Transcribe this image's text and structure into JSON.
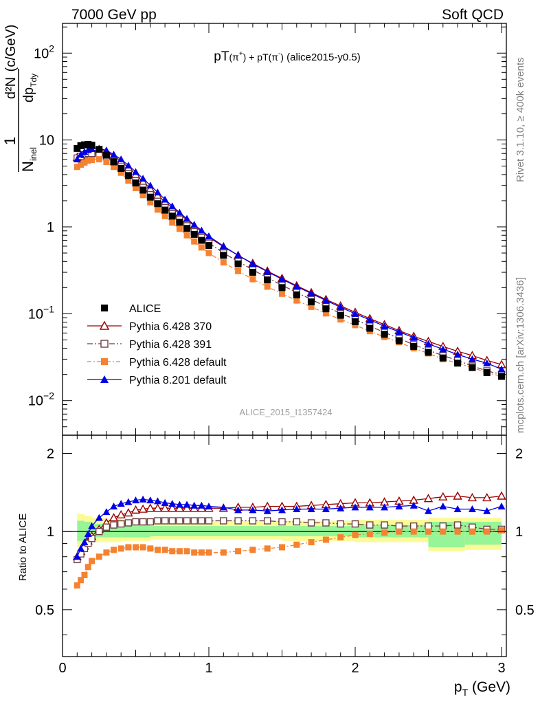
{
  "header": {
    "left": "7000 GeV pp",
    "right": "Soft QCD"
  },
  "side_labels": {
    "top": "Rivet 3.1.10, ≥ 400k events",
    "bottom": "mcplots.cern.ch [arXiv:1306.3436]"
  },
  "title": {
    "p1": "pT",
    "s1": "(π",
    "s1sup": "+",
    "s1b": ")",
    "plus": " + pT",
    "s2": "(π",
    "s2sup": "-",
    "s2b": ")",
    "tail": " (alice2015-y0.5)"
  },
  "watermark": "ALICE_2015_I1357424",
  "ylabel_main": {
    "one": "1",
    "n": "N",
    "nsub": "inel",
    "d2n": "d²N",
    "dp": "dp",
    "dpsub": "T",
    "dy": "dy",
    "units": "(c/GeV)"
  },
  "ylabel_ratio": "Ratio to ALICE",
  "xlabel": {
    "p": "p",
    "sub": "T",
    "units": " (GeV)"
  },
  "colors": {
    "alice": "#000000",
    "p370": "#990000",
    "p391": "#6b3f46",
    "pdef": "#f58231",
    "p8": "#0000e6",
    "band_inner": "#96f596",
    "band_outer": "#fafa96"
  },
  "chart_data": [
    {
      "type": "scatter",
      "panel": "main",
      "yscale": "log",
      "xlim": [
        0,
        3
      ],
      "ylim": [
        0.004,
        220
      ],
      "yticks": [
        0.01,
        0.1,
        1,
        10,
        100
      ],
      "yticklabels": [
        "10^-2",
        "10^-1",
        "1",
        "10",
        "10^2"
      ],
      "x": [
        0.1,
        0.125,
        0.15,
        0.175,
        0.2,
        0.25,
        0.3,
        0.35,
        0.4,
        0.45,
        0.5,
        0.55,
        0.6,
        0.65,
        0.7,
        0.75,
        0.8,
        0.85,
        0.9,
        0.95,
        1.0,
        1.1,
        1.2,
        1.3,
        1.4,
        1.5,
        1.6,
        1.7,
        1.8,
        1.9,
        2.0,
        2.1,
        2.2,
        2.3,
        2.4,
        2.5,
        2.6,
        2.7,
        2.8,
        2.9,
        3.0
      ],
      "series": [
        {
          "name": "ALICE",
          "marker": "filled-square",
          "values": [
            8.0,
            8.6,
            8.8,
            8.9,
            8.7,
            7.8,
            6.7,
            5.6,
            4.7,
            3.9,
            3.2,
            2.65,
            2.2,
            1.85,
            1.56,
            1.33,
            1.13,
            0.96,
            0.82,
            0.7,
            0.61,
            0.47,
            0.375,
            0.3,
            0.245,
            0.2,
            0.165,
            0.137,
            0.114,
            0.096,
            0.081,
            0.068,
            0.058,
            0.049,
            0.042,
            0.036,
            0.031,
            0.027,
            0.024,
            0.021,
            0.019
          ]
        },
        {
          "name": "Pythia 6.428 370",
          "marker": "open-triangle",
          "values": [
            6.3,
            6.6,
            7.0,
            7.3,
            7.5,
            7.7,
            7.4,
            6.6,
            5.7,
            4.8,
            4.0,
            3.3,
            2.75,
            2.3,
            1.95,
            1.66,
            1.41,
            1.2,
            1.03,
            0.88,
            0.76,
            0.59,
            0.47,
            0.38,
            0.31,
            0.255,
            0.21,
            0.175,
            0.146,
            0.123,
            0.104,
            0.088,
            0.075,
            0.064,
            0.055,
            0.048,
            0.042,
            0.037,
            0.033,
            0.029,
            0.026
          ]
        },
        {
          "name": "Pythia 6.428 391",
          "marker": "open-square",
          "values": [
            6.2,
            6.5,
            6.8,
            7.0,
            7.0,
            6.9,
            6.4,
            5.7,
            4.9,
            4.1,
            3.4,
            2.85,
            2.35,
            1.97,
            1.67,
            1.42,
            1.21,
            1.03,
            0.88,
            0.75,
            0.65,
            0.5,
            0.4,
            0.32,
            0.26,
            0.213,
            0.176,
            0.146,
            0.121,
            0.101,
            0.086,
            0.072,
            0.061,
            0.052,
            0.044,
            0.038,
            0.033,
            0.029,
            0.025,
            0.022,
            0.02
          ]
        },
        {
          "name": "Pythia 6.428 default",
          "marker": "filled-square",
          "values": [
            4.9,
            5.2,
            5.5,
            5.8,
            5.9,
            6.0,
            5.6,
            4.9,
            4.2,
            3.4,
            2.8,
            2.32,
            1.92,
            1.58,
            1.33,
            1.12,
            0.95,
            0.8,
            0.68,
            0.58,
            0.5,
            0.39,
            0.31,
            0.25,
            0.205,
            0.17,
            0.142,
            0.12,
            0.101,
            0.086,
            0.074,
            0.063,
            0.054,
            0.047,
            0.04,
            0.035,
            0.03,
            0.027,
            0.024,
            0.021,
            0.019
          ]
        },
        {
          "name": "Pythia 8.201 default",
          "marker": "filled-triangle",
          "values": [
            6.0,
            6.8,
            7.3,
            7.7,
            7.9,
            8.0,
            7.6,
            6.8,
            6.0,
            5.1,
            4.3,
            3.6,
            3.0,
            2.5,
            2.07,
            1.73,
            1.46,
            1.24,
            1.06,
            0.91,
            0.78,
            0.6,
            0.47,
            0.375,
            0.305,
            0.25,
            0.206,
            0.171,
            0.142,
            0.119,
            0.1,
            0.085,
            0.072,
            0.062,
            0.053,
            0.045,
            0.039,
            0.034,
            0.03,
            0.027,
            0.023
          ]
        }
      ]
    },
    {
      "type": "scatter",
      "panel": "ratio",
      "ylabel": "Ratio to ALICE",
      "xlabel": "p_T (GeV)",
      "xlim": [
        0,
        3
      ],
      "ylim": [
        0.33,
        2.35
      ],
      "xticks": [
        0,
        1,
        2,
        3
      ],
      "yticks": [
        0.5,
        1,
        2
      ],
      "x": [
        0.1,
        0.125,
        0.15,
        0.175,
        0.2,
        0.25,
        0.3,
        0.35,
        0.4,
        0.45,
        0.5,
        0.55,
        0.6,
        0.65,
        0.7,
        0.75,
        0.8,
        0.85,
        0.9,
        0.95,
        1.0,
        1.1,
        1.2,
        1.3,
        1.4,
        1.5,
        1.6,
        1.7,
        1.8,
        1.9,
        2.0,
        2.1,
        2.2,
        2.3,
        2.4,
        2.5,
        2.6,
        2.7,
        2.8,
        2.9,
        3.0
      ],
      "bands": {
        "x_edges": [
          0.1,
          0.15,
          0.2,
          0.3,
          0.4,
          0.6,
          1.0,
          1.5,
          2.0,
          2.5,
          2.75,
          3.0
        ],
        "inner": [
          [
            0.92,
            1.1
          ],
          [
            0.93,
            1.09
          ],
          [
            0.95,
            1.07
          ],
          [
            0.95,
            1.06
          ],
          [
            0.95,
            1.06
          ],
          [
            0.96,
            1.05
          ],
          [
            0.96,
            1.05
          ],
          [
            0.96,
            1.05
          ],
          [
            0.95,
            1.06
          ],
          [
            0.87,
            1.09
          ],
          [
            0.89,
            1.09
          ]
        ],
        "outer": [
          [
            0.87,
            1.17
          ],
          [
            0.89,
            1.15
          ],
          [
            0.91,
            1.13
          ],
          [
            0.91,
            1.12
          ],
          [
            0.92,
            1.11
          ],
          [
            0.93,
            1.1
          ],
          [
            0.93,
            1.1
          ],
          [
            0.92,
            1.1
          ],
          [
            0.91,
            1.11
          ],
          [
            0.84,
            1.13
          ],
          [
            0.85,
            1.13
          ]
        ]
      },
      "series": [
        {
          "name": "Pythia 6.428 370",
          "marker": "open-triangle",
          "values": [
            0.8,
            0.84,
            0.88,
            0.92,
            0.96,
            1.02,
            1.08,
            1.13,
            1.16,
            1.18,
            1.21,
            1.22,
            1.23,
            1.23,
            1.23,
            1.23,
            1.23,
            1.23,
            1.23,
            1.23,
            1.23,
            1.23,
            1.24,
            1.24,
            1.25,
            1.25,
            1.25,
            1.26,
            1.27,
            1.28,
            1.29,
            1.29,
            1.3,
            1.31,
            1.32,
            1.34,
            1.36,
            1.37,
            1.35,
            1.35,
            1.37
          ]
        },
        {
          "name": "Pythia 6.428 391",
          "marker": "open-square",
          "values": [
            0.78,
            0.82,
            0.86,
            0.9,
            0.94,
            1.0,
            1.04,
            1.06,
            1.07,
            1.08,
            1.09,
            1.09,
            1.09,
            1.1,
            1.1,
            1.1,
            1.1,
            1.1,
            1.1,
            1.1,
            1.1,
            1.1,
            1.1,
            1.1,
            1.1,
            1.09,
            1.09,
            1.08,
            1.08,
            1.07,
            1.07,
            1.06,
            1.06,
            1.05,
            1.05,
            1.05,
            1.05,
            1.06,
            1.04,
            1.02,
            1.02
          ]
        },
        {
          "name": "Pythia 6.428 default",
          "marker": "filled-square",
          "values": [
            0.62,
            0.65,
            0.68,
            0.73,
            0.77,
            0.8,
            0.83,
            0.85,
            0.86,
            0.87,
            0.87,
            0.87,
            0.86,
            0.85,
            0.85,
            0.84,
            0.84,
            0.84,
            0.83,
            0.83,
            0.83,
            0.83,
            0.84,
            0.85,
            0.86,
            0.87,
            0.89,
            0.91,
            0.93,
            0.95,
            0.97,
            0.98,
            0.99,
            1.0,
            1.0,
            1.0,
            1.0,
            1.0,
            1.0,
            1.0,
            1.01
          ]
        },
        {
          "name": "Pythia 8.201 default",
          "marker": "filled-triangle",
          "values": [
            0.8,
            0.86,
            0.91,
            0.98,
            1.05,
            1.13,
            1.19,
            1.25,
            1.28,
            1.3,
            1.32,
            1.33,
            1.32,
            1.31,
            1.29,
            1.28,
            1.27,
            1.27,
            1.26,
            1.26,
            1.25,
            1.24,
            1.21,
            1.21,
            1.2,
            1.21,
            1.22,
            1.22,
            1.22,
            1.23,
            1.24,
            1.24,
            1.24,
            1.25,
            1.26,
            1.2,
            1.25,
            1.22,
            1.22,
            1.2,
            1.25
          ]
        }
      ]
    }
  ]
}
